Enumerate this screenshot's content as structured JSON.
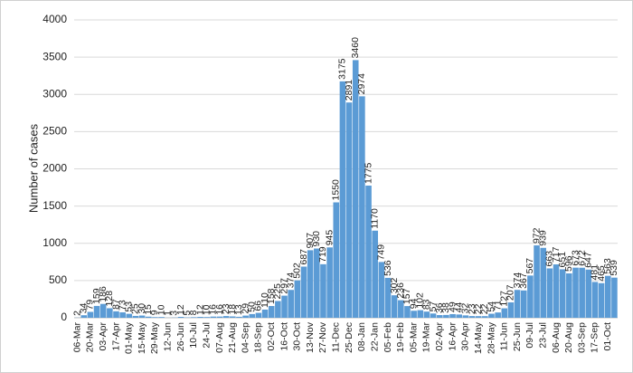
{
  "chart_data": {
    "type": "bar",
    "y_label": "Number of cases",
    "categories": [
      "06-Mar",
      null,
      "20-Mar",
      null,
      "03-Apr",
      null,
      "17-Apr",
      null,
      "01-May",
      null,
      "15-May",
      null,
      "29-May",
      null,
      "12-Jun",
      null,
      "26-Jun",
      null,
      "10-Jul",
      null,
      "24-Jul",
      null,
      "07-Aug",
      null,
      "21-Aug",
      null,
      "04-Sep",
      null,
      "18-Sep",
      null,
      "02-Oct",
      null,
      "16-Oct",
      null,
      "30-Oct",
      null,
      "13-Nov",
      null,
      "27-Nov",
      null,
      "11-Dec",
      null,
      "25-Dec",
      null,
      "08-Jan",
      null,
      "22-Jan",
      null,
      "05-Feb",
      null,
      "19-Feb",
      null,
      "05-Mar",
      null,
      "19-Mar",
      null,
      "02-Apr",
      null,
      "16-Apr",
      null,
      "30-Apr",
      null,
      "14-May",
      null,
      "28-May",
      null,
      "11-Jun",
      null,
      "25-Jun",
      null,
      "09-Jul",
      null,
      "23-Jul",
      null,
      "06-Aug",
      null,
      "20-Aug",
      null,
      "03-Sep",
      null,
      "17-Sep",
      null,
      "01-Oct",
      null
    ],
    "values": [
      2,
      34,
      79,
      159,
      186,
      128,
      87,
      73,
      53,
      25,
      30,
      15,
      9,
      10,
      1,
      3,
      12,
      5,
      8,
      12,
      10,
      16,
      16,
      23,
      18,
      13,
      29,
      50,
      66,
      110,
      158,
      225,
      297,
      374,
      502,
      687,
      907,
      930,
      719,
      945,
      1550,
      3175,
      2891,
      3460,
      2974,
      1775,
      1170,
      749,
      536,
      302,
      236,
      157,
      94,
      102,
      83,
      57,
      36,
      38,
      49,
      44,
      32,
      23,
      22,
      22,
      54,
      71,
      127,
      207,
      374,
      367,
      567,
      972,
      939,
      663,
      717,
      651,
      596,
      673,
      672,
      647,
      481,
      465,
      563,
      539
    ],
    "color": "#5b9bd5",
    "ylim": [
      0,
      4000
    ],
    "yticks": [
      0,
      500,
      1000,
      1500,
      2000,
      2500,
      3000,
      3500,
      4000
    ],
    "grid": true
  }
}
